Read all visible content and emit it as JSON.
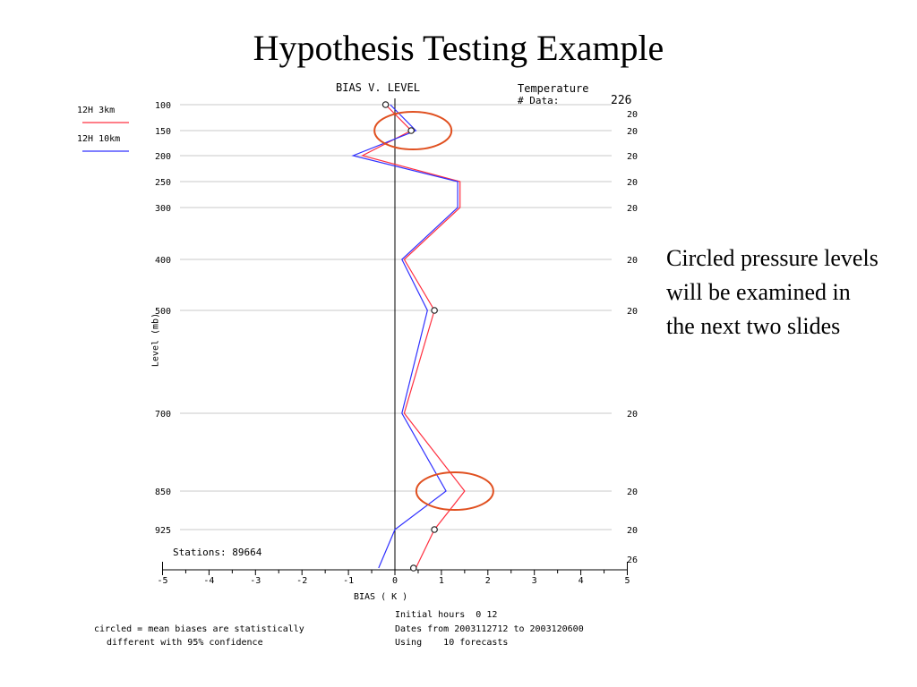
{
  "slide": {
    "title": "Hypothesis Testing Example",
    "note": "Circled pressure levels will be examined in the next two slides"
  },
  "chart_data": {
    "type": "line",
    "title": "BIAS V. LEVEL",
    "variable": "Temperature",
    "data_label": "# Data:",
    "data_total": "226",
    "xlabel": "BIAS ( K )",
    "ylabel": "Level (mb)",
    "xlim": [
      -5,
      5
    ],
    "xticks": [
      -5,
      -4,
      -3,
      -2,
      -1,
      0,
      1,
      2,
      3,
      4,
      5
    ],
    "levels": [
      100,
      150,
      200,
      250,
      300,
      400,
      500,
      700,
      850,
      925,
      1000
    ],
    "level_ticks": [
      "100",
      "150",
      "200",
      "250",
      "300",
      "400",
      "500",
      "700",
      "850",
      "925"
    ],
    "counts": [
      "20",
      "20",
      "20",
      "20",
      "20",
      "20",
      "20",
      "20",
      "20",
      "20",
      "26"
    ],
    "series": [
      {
        "name": "12H 3km",
        "color": "#ff3040",
        "values": [
          -0.2,
          0.35,
          -0.7,
          1.4,
          1.4,
          0.2,
          0.85,
          0.2,
          1.5,
          0.85,
          0.45
        ]
      },
      {
        "name": "12H 10km",
        "color": "#3030ff",
        "values": [
          -0.1,
          0.45,
          -0.9,
          1.35,
          1.35,
          0.15,
          0.7,
          0.15,
          1.1,
          0.0,
          -0.35
        ]
      }
    ],
    "significant_points": [
      {
        "level": 100,
        "bias": -0.2
      },
      {
        "level": 150,
        "bias": 0.35
      },
      {
        "level": 500,
        "bias": 0.85
      },
      {
        "level": 925,
        "bias": 0.85
      },
      {
        "level": 1000,
        "bias": 0.4
      }
    ],
    "highlight_levels": [
      {
        "level": 150,
        "bias": 0.35
      },
      {
        "level": 850,
        "bias": 1.25
      }
    ],
    "highlight_color": "#e05020",
    "stations": "Stations: 89664",
    "footnote_line1": "circled = mean biases are statistically",
    "footnote_line2": "different with 95% confidence",
    "initial_hours": "Initial hours  0 12",
    "dates": "Dates from 2003112712 to 2003120600",
    "using": "Using    10 forecasts"
  }
}
